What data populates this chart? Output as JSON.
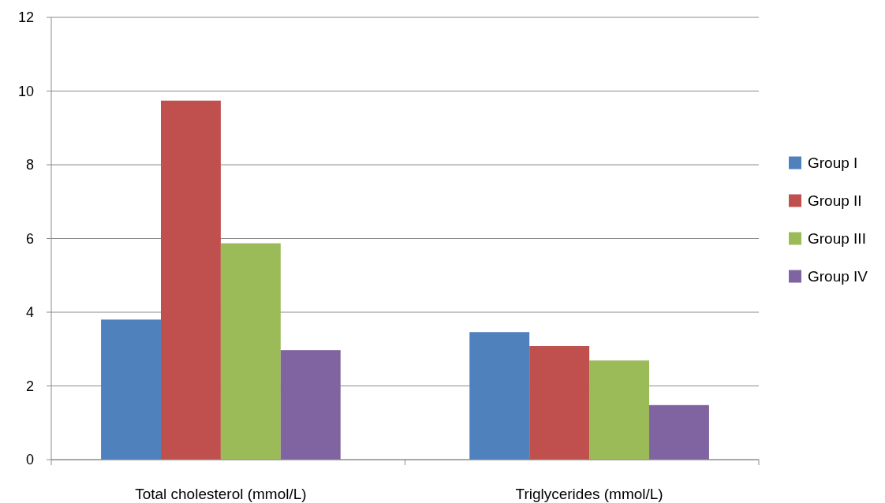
{
  "chart_data": {
    "type": "bar",
    "categories": [
      "Total cholesterol (mmol/L)",
      "Triglycerides (mmol/L)"
    ],
    "series": [
      {
        "name": "Group I",
        "color": "#4f81bd",
        "values": [
          3.8,
          3.46
        ]
      },
      {
        "name": "Group II",
        "color": "#c0504d",
        "values": [
          9.74,
          3.08
        ]
      },
      {
        "name": "Group III",
        "color": "#9bbb59",
        "values": [
          5.87,
          2.69
        ]
      },
      {
        "name": "Group IV",
        "color": "#8064a2",
        "values": [
          2.97,
          1.48
        ]
      }
    ],
    "ylim": [
      0,
      12
    ],
    "yticks": [
      0,
      2,
      4,
      6,
      8,
      10,
      12
    ],
    "grid": "y",
    "legend": "right"
  }
}
